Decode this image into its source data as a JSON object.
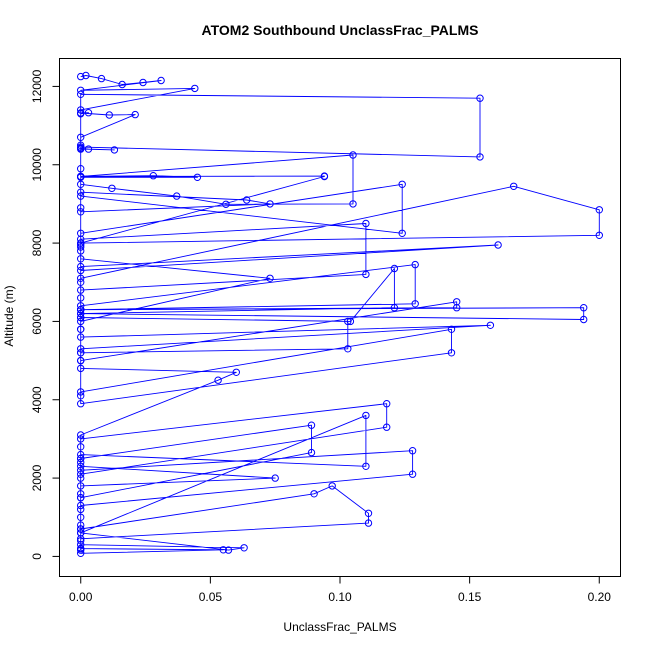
{
  "chart_data": {
    "type": "line",
    "title": "ATOM2 Southbound UnclassFrac_PALMS",
    "xlabel": "UnclassFrac_PALMS",
    "ylabel": "Altitude (m)",
    "xlim": [
      -0.008,
      0.208
    ],
    "ylim": [
      -500,
      12700
    ],
    "xticks": [
      0.0,
      0.05,
      0.1,
      0.15,
      0.2
    ],
    "xtick_labels": [
      "0.00",
      "0.05",
      "0.10",
      "0.15",
      "0.20"
    ],
    "yticks": [
      0,
      2000,
      4000,
      6000,
      8000,
      10000,
      12000
    ],
    "ytick_labels": [
      "0",
      "2000",
      "4000",
      "6000",
      "8000",
      "10000",
      "12000"
    ],
    "grid": false,
    "color": "#0000ff",
    "series": [
      {
        "x": [
          0.0,
          0.002,
          0.008,
          0.016,
          0.024,
          0.031,
          0.0,
          0.044,
          0.0,
          0.0,
          0.003,
          0.0,
          0.011,
          0.021,
          0.0,
          0.0,
          0.0,
          0.154,
          0.154,
          0.0,
          0.0,
          0.003,
          0.013,
          0.0,
          0.0,
          0.0,
          0.028,
          0.045,
          0.0,
          0.0,
          0.0,
          0.012,
          0.037,
          0.056,
          0.105,
          0.105,
          0.0,
          0.0,
          0.064,
          0.073,
          0.0,
          0.0,
          0.0,
          0.094,
          0.094,
          0.0,
          0.0,
          0.124,
          0.124,
          0.0,
          0.0,
          0.0,
          0.073,
          0.0,
          0.0,
          0.0,
          0.11,
          0.11,
          0.0,
          0.0,
          0.167,
          0.2,
          0.2,
          0.0,
          0.0,
          0.0,
          0.161,
          0.0,
          0.0,
          0.0,
          0.0,
          0.129,
          0.129,
          0.0,
          0.0,
          0.104,
          0.121,
          0.121,
          0.0,
          0.0,
          0.194,
          0.194,
          0.0,
          0.0,
          0.0,
          0.145,
          0.145,
          0.0,
          0.0,
          0.0,
          0.0,
          0.158,
          0.0,
          0.0,
          0.0,
          0.103,
          0.103,
          0.0,
          0.0,
          0.143,
          0.143,
          0.0,
          0.0,
          0.0,
          0.0,
          0.06,
          0.053,
          0.0,
          0.0,
          0.0,
          0.0,
          0.118,
          0.118,
          0.0,
          0.0,
          0.0,
          0.0,
          0.0,
          0.075,
          0.0,
          0.0,
          0.0,
          0.089,
          0.089,
          0.0,
          0.0,
          0.128,
          0.128,
          0.0,
          0.0,
          0.11,
          0.11,
          0.0,
          0.0,
          0.0,
          0.09,
          0.097,
          0.111,
          0.111,
          0.0,
          0.0,
          0.0,
          0.0,
          0.0,
          0.063,
          0.057,
          0.0,
          0.0,
          0.0,
          0.0,
          0.0,
          0.055,
          0.0
        ],
        "y": [
          12250,
          12280,
          12200,
          12050,
          12100,
          12150,
          11900,
          11950,
          11400,
          11300,
          11330,
          11320,
          11270,
          11280,
          10700,
          10500,
          11800,
          11700,
          10200,
          10450,
          10420,
          10400,
          10380,
          10400,
          9900,
          9700,
          9720,
          9680,
          9680,
          8900,
          9500,
          9400,
          9200,
          8990,
          9000,
          10250,
          9700,
          9300,
          9100,
          9000,
          8800,
          7800,
          9700,
          9710,
          9700,
          8000,
          8250,
          9500,
          8250,
          9200,
          7900,
          7600,
          7100,
          6000,
          7000,
          8100,
          8500,
          7200,
          6800,
          7100,
          9450,
          8850,
          8200,
          8000,
          7950,
          7300,
          7950,
          7400,
          6300,
          6600,
          6400,
          7450,
          6450,
          6300,
          6100,
          6000,
          7350,
          6350,
          6200,
          6300,
          6350,
          6050,
          6200,
          6300,
          5000,
          6500,
          6350,
          6300,
          5800,
          5200,
          5600,
          5900,
          5300,
          5800,
          6100,
          6000,
          5300,
          5200,
          4200,
          5800,
          5200,
          3900,
          4100,
          5000,
          4800,
          4700,
          4500,
          3100,
          2800,
          2500,
          3000,
          3900,
          3300,
          2100,
          2000,
          1500,
          1600,
          1800,
          2000,
          2300,
          2400,
          2500,
          3350,
          2650,
          1500,
          2200,
          2700,
          2100,
          1300,
          600,
          3600,
          2300,
          2600,
          1200,
          700,
          1600,
          1800,
          1100,
          850,
          450,
          200,
          400,
          700,
          300,
          220,
          160,
          600,
          800,
          1000,
          160,
          200,
          170,
          80
        ]
      }
    ]
  }
}
